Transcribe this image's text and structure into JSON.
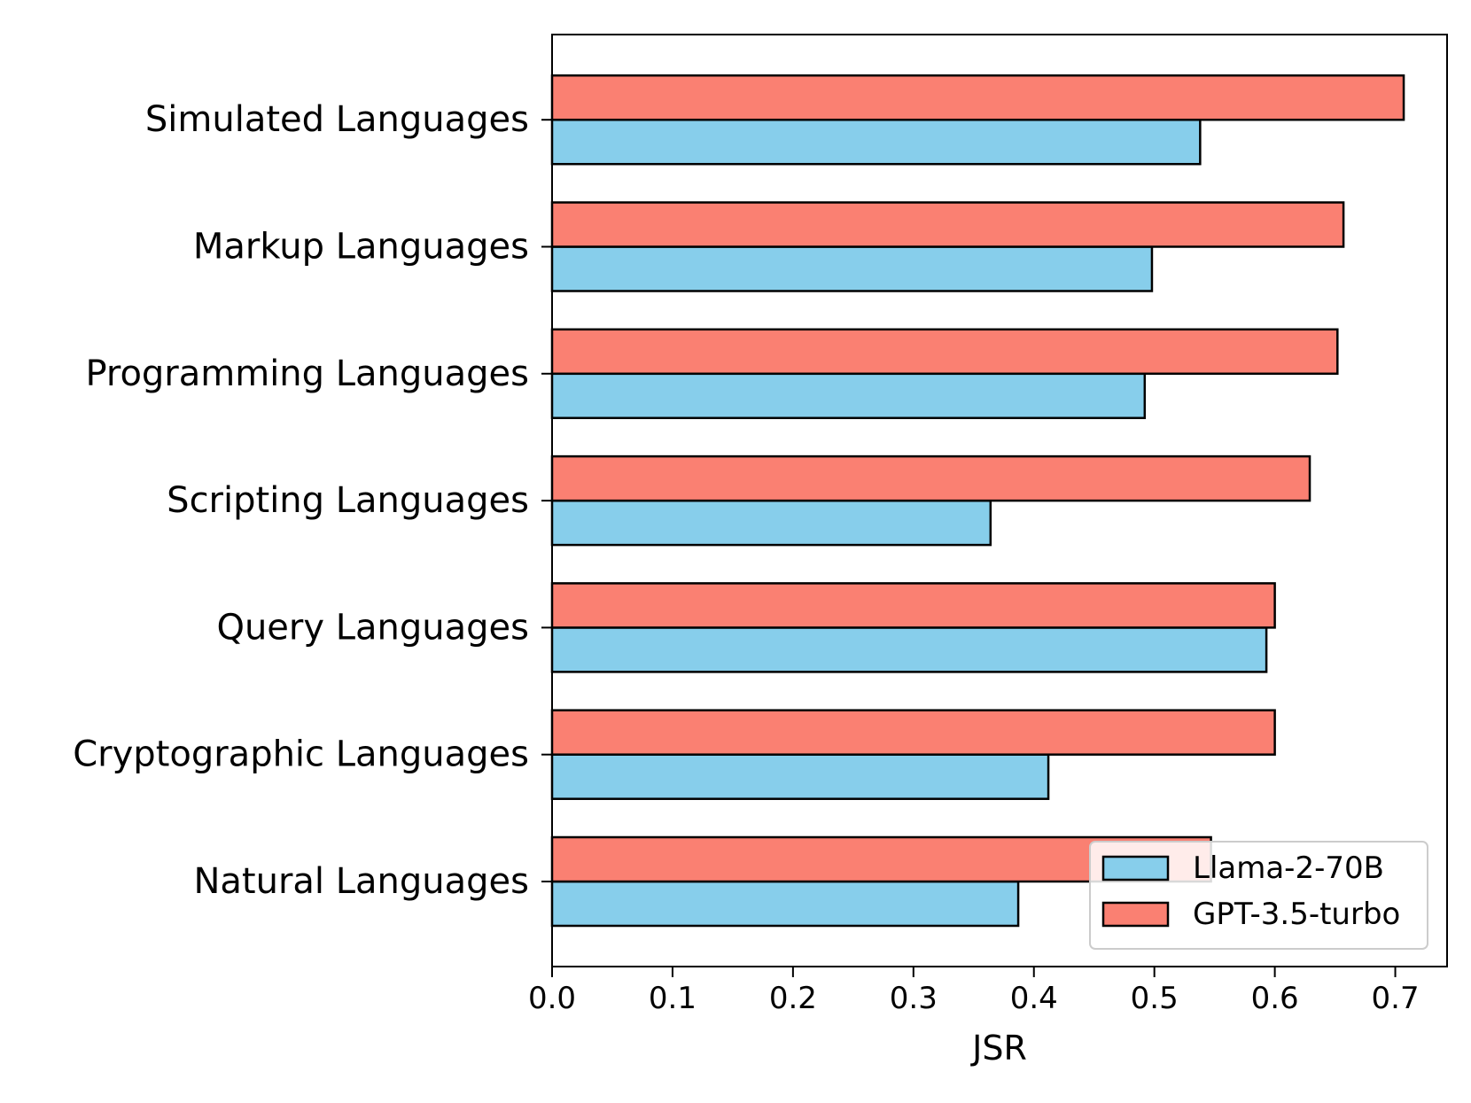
{
  "chart_data": {
    "type": "bar",
    "orientation": "horizontal",
    "categories": [
      "Natural Languages",
      "Cryptographic Languages",
      "Query Languages",
      "Scripting Languages",
      "Programming Languages",
      "Markup Languages",
      "Simulated Languages"
    ],
    "series": [
      {
        "name": "Llama-2-70B",
        "color": "#87CEEB",
        "values": [
          0.387,
          0.412,
          0.593,
          0.364,
          0.492,
          0.498,
          0.538
        ]
      },
      {
        "name": "GPT-3.5-turbo",
        "color": "#FA8072",
        "values": [
          0.547,
          0.6,
          0.6,
          0.629,
          0.652,
          0.657,
          0.707
        ]
      }
    ],
    "xlabel": "JSR",
    "ylabel": "",
    "title": "",
    "xlim": [
      0.0,
      0.743
    ],
    "xticks": [
      0.0,
      0.1,
      0.2,
      0.3,
      0.4,
      0.5,
      0.6,
      0.7
    ],
    "xtick_labels": [
      "0.0",
      "0.1",
      "0.2",
      "0.3",
      "0.4",
      "0.5",
      "0.6",
      "0.7"
    ],
    "grid": false,
    "legend": {
      "position": "lower right",
      "entries": [
        "Llama-2-70B",
        "GPT-3.5-turbo"
      ]
    }
  }
}
